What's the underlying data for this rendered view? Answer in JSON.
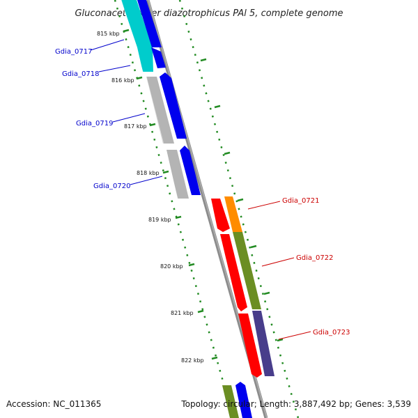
{
  "title": "Gluconacetobacter diazotrophicus PAl 5, complete genome",
  "footer": {
    "accession": "Accession: NC_011365",
    "summary": "Topology: circular; Length: 3,887,492 bp; Genes: 3,539"
  },
  "ticks": [
    "815 kbp",
    "816 kbp",
    "817 kbp",
    "818 kbp",
    "819 kbp",
    "820 kbp",
    "821 kbp",
    "822 kbp"
  ],
  "genes": [
    {
      "name": "Gdia_0717",
      "color": "#00cccc",
      "strand": "minus"
    },
    {
      "name": "Gdia_0718",
      "color": "#00cccc",
      "strand": "minus"
    },
    {
      "name": "Gdia_0719",
      "color": "#b4b4b4",
      "strand": "minus"
    },
    {
      "name": "Gdia_0720",
      "color": "#b4b4b4",
      "strand": "minus"
    },
    {
      "name": "Gdia_0721",
      "color": "#ff8c00",
      "strand": "plus"
    },
    {
      "name": "Gdia_0722",
      "color": "#6b8e23",
      "strand": "plus"
    },
    {
      "name": "Gdia_0723",
      "color": "#483d8b",
      "strand": "plus"
    }
  ],
  "colors": {
    "backbone": "#8c8c8c",
    "tick": "#228b22",
    "cds": "#0000ee",
    "cds_red": "#ff0000",
    "label_blue": "#0000cc",
    "label_red": "#cc0000"
  }
}
